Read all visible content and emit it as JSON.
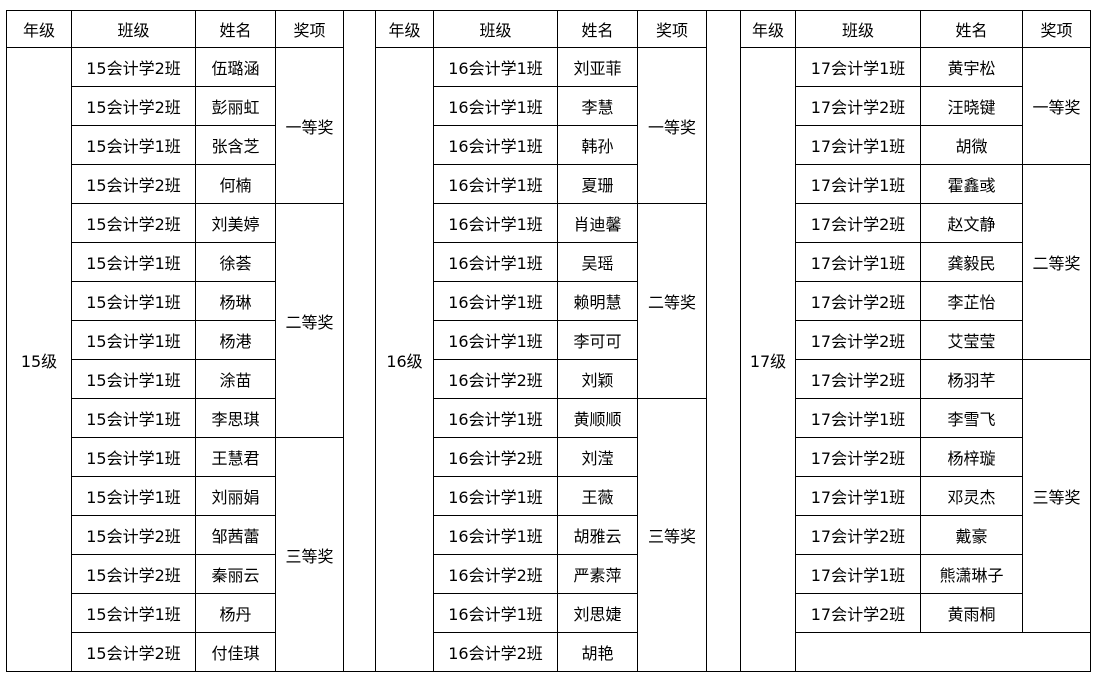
{
  "panels": [
    {
      "headers": [
        "年级",
        "班级",
        "姓名",
        "奖项"
      ],
      "grade": "15级",
      "groups": [
        {
          "award": "一等奖",
          "rows": [
            [
              "15会计学2班",
              "伍璐涵"
            ],
            [
              "15会计学2班",
              "彭丽虹"
            ],
            [
              "15会计学1班",
              "张含芝"
            ],
            [
              "15会计学2班",
              "何楠"
            ]
          ]
        },
        {
          "award": "二等奖",
          "rows": [
            [
              "15会计学2班",
              "刘美婷"
            ],
            [
              "15会计学1班",
              "徐荟"
            ],
            [
              "15会计学1班",
              "杨琳"
            ],
            [
              "15会计学1班",
              "杨港"
            ],
            [
              "15会计学1班",
              "涂苗"
            ],
            [
              "15会计学1班",
              "李思琪"
            ]
          ]
        },
        {
          "award": "三等奖",
          "rows": [
            [
              "15会计学1班",
              "王慧君"
            ],
            [
              "15会计学1班",
              "刘丽娟"
            ],
            [
              "15会计学2班",
              "邹茜蕾"
            ],
            [
              "15会计学2班",
              "秦丽云"
            ],
            [
              "15会计学1班",
              "杨丹"
            ],
            [
              "15会计学2班",
              "付佳琪"
            ]
          ]
        }
      ]
    },
    {
      "headers": [
        "年级",
        "班级",
        "姓名",
        "奖项"
      ],
      "grade": "16级",
      "groups": [
        {
          "award": "一等奖",
          "rows": [
            [
              "16会计学1班",
              "刘亚菲"
            ],
            [
              "16会计学1班",
              "李慧"
            ],
            [
              "16会计学1班",
              "韩孙"
            ],
            [
              "16会计学1班",
              "夏珊"
            ]
          ]
        },
        {
          "award": "二等奖",
          "rows": [
            [
              "16会计学1班",
              "肖迪馨"
            ],
            [
              "16会计学1班",
              "吴瑶"
            ],
            [
              "16会计学1班",
              "赖明慧"
            ],
            [
              "16会计学1班",
              "李可可"
            ],
            [
              "16会计学2班",
              "刘颖"
            ]
          ]
        },
        {
          "award": "三等奖",
          "rows": [
            [
              "16会计学1班",
              "黄顺顺"
            ],
            [
              "16会计学2班",
              "刘滢"
            ],
            [
              "16会计学1班",
              "王薇"
            ],
            [
              "16会计学1班",
              "胡雅云"
            ],
            [
              "16会计学2班",
              "严素萍"
            ],
            [
              "16会计学1班",
              "刘思婕"
            ],
            [
              "16会计学2班",
              "胡艳"
            ]
          ]
        }
      ]
    },
    {
      "headers": [
        "年级",
        "班级",
        "姓名",
        "奖项"
      ],
      "grade": "17级",
      "groups": [
        {
          "award": "一等奖",
          "rows": [
            [
              "17会计学1班",
              "黄宇松"
            ],
            [
              "17会计学2班",
              "汪晓键"
            ],
            [
              "17会计学1班",
              "胡微"
            ]
          ]
        },
        {
          "award": "二等奖",
          "rows": [
            [
              "17会计学1班",
              "霍鑫彧"
            ],
            [
              "17会计学2班",
              "赵文静"
            ],
            [
              "17会计学1班",
              "龚毅民"
            ],
            [
              "17会计学2班",
              "李芷怡"
            ],
            [
              "17会计学2班",
              "艾莹莹"
            ]
          ]
        },
        {
          "award": "三等奖",
          "rows": [
            [
              "17会计学2班",
              "杨羽芊"
            ],
            [
              "17会计学1班",
              "李雪飞"
            ],
            [
              "17会计学2班",
              "杨梓璇"
            ],
            [
              "17会计学1班",
              "邓灵杰"
            ],
            [
              "17会计学2班",
              "戴豪"
            ],
            [
              "17会计学1班",
              "熊潇琳子"
            ],
            [
              "17会计学2班",
              "黄雨桐"
            ]
          ]
        }
      ]
    }
  ]
}
